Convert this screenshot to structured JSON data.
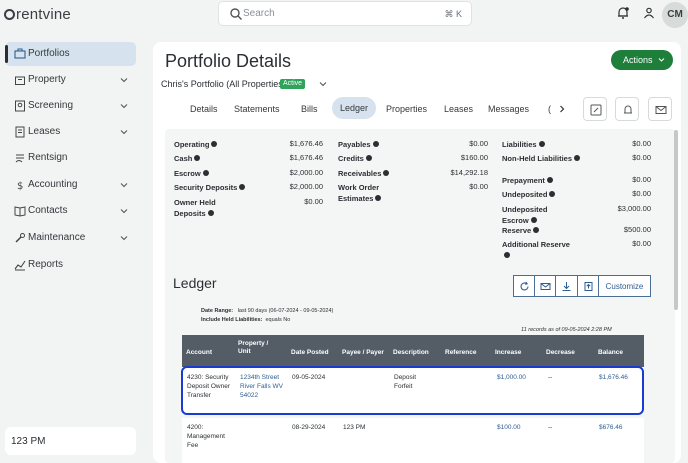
{
  "app": {
    "logo": "rentvine"
  },
  "search": {
    "placeholder": "Search",
    "shortcut": "⌘ K"
  },
  "user": {
    "initials": "CM"
  },
  "sidebar": {
    "items": [
      {
        "label": "Portfolios",
        "icon": "portfolio-icon",
        "active": true
      },
      {
        "label": "Property",
        "icon": "property-icon"
      },
      {
        "label": "Screening",
        "icon": "screening-icon"
      },
      {
        "label": "Leases",
        "icon": "leases-icon"
      },
      {
        "label": "Rentsign",
        "icon": "rentsign-icon"
      },
      {
        "label": "Accounting",
        "icon": "dollar-icon"
      },
      {
        "label": "Contacts",
        "icon": "contacts-icon"
      },
      {
        "label": "Maintenance",
        "icon": "wrench-icon"
      },
      {
        "label": "Reports",
        "icon": "reports-icon"
      }
    ],
    "footer": "123 PM"
  },
  "page": {
    "title": "Portfolio Details",
    "portfolio": "Chris's Portfolio (All Properties)",
    "status": "Active",
    "actions_label": "Actions"
  },
  "tabs": [
    "Details",
    "Statements",
    "Bills",
    "Ledger",
    "Properties",
    "Leases",
    "Messages"
  ],
  "tab_overflow": "(",
  "balances": {
    "col1": [
      {
        "label": "Operating",
        "value": "$1,676.46"
      },
      {
        "label": "Cash",
        "value": "$1,676.46"
      },
      {
        "label": "Escrow",
        "value": "$2,000.00"
      },
      {
        "label": "Security Deposits",
        "value": "$2,000.00"
      },
      {
        "label": "Owner Held Deposits",
        "value": "$0.00"
      }
    ],
    "col2": [
      {
        "label": "Payables",
        "value": "$0.00"
      },
      {
        "label": "Credits",
        "value": "$160.00"
      },
      {
        "label": "Receivables",
        "value": "$14,292.18"
      },
      {
        "label": "Work Order Estimates",
        "value": "$0.00"
      }
    ],
    "col3": [
      {
        "label": "Liabilities",
        "value": "$0.00"
      },
      {
        "label": "Non-Held Liabilities",
        "value": "$0.00"
      },
      {
        "label": "Prepayment",
        "value": "$0.00"
      },
      {
        "label": "Undeposited",
        "value": "$0.00"
      },
      {
        "label": "Undeposited Escrow",
        "value": "$3,000.00"
      },
      {
        "label": "Reserve",
        "value": "$500.00"
      },
      {
        "label": "Additional Reserve",
        "value": "$0.00"
      }
    ]
  },
  "ledger": {
    "title": "Ledger",
    "customize_label": "Customize",
    "date_range_label": "Date Range:",
    "date_range_value": "last 90 days (06-07-2024 - 09-05-2024)",
    "held_label": "Include Held Liabilities:",
    "held_value": "equals No",
    "records_note": "11 records as of 09-05-2024 2:28 PM",
    "columns": [
      "Account",
      "Property / Unit",
      "Date Posted",
      "Payee / Payer",
      "Description",
      "Reference",
      "Increase",
      "Decrease",
      "Balance"
    ],
    "rows": [
      {
        "account": "4230: Security Deposit Owner Transfer",
        "property": "1234th Street River Falls WV 54022",
        "date": "09-05-2024",
        "payee": "",
        "description": "Deposit Forfeit",
        "reference": "",
        "increase": "$1,000.00",
        "decrease": "--",
        "balance": "$1,676.46"
      },
      {
        "account": "4200: Management Fee",
        "property": "",
        "date": "08-29-2024",
        "payee": "123 PM",
        "description": "",
        "reference": "",
        "increase": "$100.00",
        "decrease": "--",
        "balance": "$676.46"
      }
    ]
  },
  "colors": {
    "accent": "#1e7f3a",
    "link": "#2e5d92",
    "highlight": "#1a3bd1",
    "header": "#545c66"
  }
}
